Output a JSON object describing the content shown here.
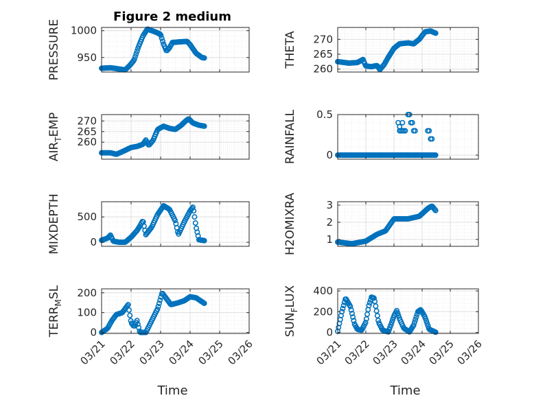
{
  "figure_title": "Figure 2 medium",
  "colors": {
    "marker": "#0072BD",
    "axis": "#262626",
    "grid_major": "#dfdfdf",
    "grid_minor": "#ececec",
    "background": "#ffffff"
  },
  "x_tick_labels": [
    "03/21",
    "03/22",
    "03/23",
    "03/24",
    "03/25",
    "03/26"
  ],
  "x_label": "Time",
  "chart_data": [
    {
      "type": "scatter",
      "id": "pressure",
      "ylabel": "PRESSURE",
      "xlabel": "",
      "x_unit": "days since 03/21",
      "xlim": [
        0,
        5
      ],
      "ylim": [
        923,
        1006
      ],
      "yticks": [
        950,
        1000
      ],
      "ytick_labels": [
        "950",
        "1000"
      ],
      "grid": true,
      "keyframes": [
        [
          0,
          930
        ],
        [
          0.3,
          931
        ],
        [
          0.55,
          929
        ],
        [
          0.8,
          927
        ],
        [
          0.95,
          935
        ],
        [
          1.1,
          945
        ],
        [
          1.25,
          970
        ],
        [
          1.4,
          990
        ],
        [
          1.55,
          1003
        ],
        [
          1.7,
          1000
        ],
        [
          1.85,
          997
        ],
        [
          2.0,
          993
        ],
        [
          2.1,
          975
        ],
        [
          2.2,
          962
        ],
        [
          2.3,
          968
        ],
        [
          2.4,
          978
        ],
        [
          2.6,
          979
        ],
        [
          2.9,
          980
        ],
        [
          3.0,
          974
        ],
        [
          3.2,
          958
        ],
        [
          3.4,
          950
        ],
        [
          3.5,
          949
        ]
      ]
    },
    {
      "type": "scatter",
      "id": "theta",
      "ylabel": "THETA",
      "xlabel": "",
      "x_unit": "days since 03/21",
      "xlim": [
        0,
        5
      ],
      "ylim": [
        259,
        274
      ],
      "yticks": [
        260,
        265,
        270
      ],
      "ytick_labels": [
        "260",
        "265",
        "270"
      ],
      "grid": true,
      "keyframes": [
        [
          0,
          262.5
        ],
        [
          0.4,
          262
        ],
        [
          0.7,
          262.2
        ],
        [
          0.9,
          263.2
        ],
        [
          1.0,
          261
        ],
        [
          1.2,
          260.8
        ],
        [
          1.4,
          261.2
        ],
        [
          1.5,
          259.8
        ],
        [
          1.65,
          261.5
        ],
        [
          1.8,
          264
        ],
        [
          2.0,
          267
        ],
        [
          2.2,
          268.5
        ],
        [
          2.5,
          268.8
        ],
        [
          2.7,
          268.5
        ],
        [
          2.9,
          270
        ],
        [
          3.1,
          272.5
        ],
        [
          3.3,
          272.8
        ],
        [
          3.5,
          272
        ]
      ]
    },
    {
      "type": "scatter",
      "id": "air_temp",
      "ylabel": "AIR",
      "ylabel_sub": "T",
      "ylabel_tail": "EMP",
      "xlabel": "",
      "x_unit": "days since 03/21",
      "xlim": [
        0,
        5
      ],
      "ylim": [
        252,
        273
      ],
      "yticks": [
        260,
        265,
        270
      ],
      "ytick_labels": [
        "260",
        "265",
        "270"
      ],
      "grid": true,
      "keyframes": [
        [
          0,
          255
        ],
        [
          0.3,
          255
        ],
        [
          0.5,
          254.3
        ],
        [
          0.7,
          255.5
        ],
        [
          1.0,
          257.5
        ],
        [
          1.2,
          258
        ],
        [
          1.4,
          259
        ],
        [
          1.5,
          261
        ],
        [
          1.6,
          258.5
        ],
        [
          1.75,
          261
        ],
        [
          1.9,
          266
        ],
        [
          2.1,
          267.5
        ],
        [
          2.3,
          266.5
        ],
        [
          2.5,
          266
        ],
        [
          2.7,
          268
        ],
        [
          2.85,
          270
        ],
        [
          2.95,
          271
        ],
        [
          3.1,
          269
        ],
        [
          3.3,
          268
        ],
        [
          3.5,
          267.5
        ]
      ]
    },
    {
      "type": "scatter",
      "id": "rainfall",
      "ylabel": "RAINFALL",
      "xlabel": "",
      "x_unit": "days since 03/21",
      "xlim": [
        0,
        5
      ],
      "ylim": [
        -0.05,
        0.5
      ],
      "yticks": [
        0,
        0.5
      ],
      "ytick_labels": [
        "0",
        "0.5"
      ],
      "grid": true,
      "keyframes": [
        [
          0,
          0
        ],
        [
          3.5,
          0
        ]
      ],
      "extra_points": [
        [
          2.15,
          0.4
        ],
        [
          2.2,
          0.3
        ],
        [
          2.25,
          0.3
        ],
        [
          2.3,
          0.3
        ],
        [
          2.35,
          0.3
        ],
        [
          2.4,
          0.3
        ],
        [
          2.45,
          0.0
        ],
        [
          2.5,
          0.5
        ],
        [
          2.55,
          0.5
        ],
        [
          2.6,
          0.4
        ],
        [
          2.65,
          0.4
        ],
        [
          2.7,
          0.3
        ],
        [
          2.75,
          0.3
        ],
        [
          2.8,
          0.0
        ],
        [
          3.2,
          0.3
        ],
        [
          3.25,
          0.3
        ],
        [
          3.3,
          0.2
        ],
        [
          3.35,
          0.2
        ],
        [
          2.2,
          0.35
        ],
        [
          2.3,
          0.4
        ]
      ]
    },
    {
      "type": "scatter",
      "id": "mixdepth",
      "ylabel": "MIXDEPTH",
      "xlabel": "",
      "x_unit": "days since 03/21",
      "xlim": [
        0,
        5
      ],
      "ylim": [
        -80,
        800
      ],
      "yticks": [
        0,
        500
      ],
      "ytick_labels": [
        "0",
        "500"
      ],
      "grid": true,
      "keyframes": [
        [
          0,
          40
        ],
        [
          0.2,
          80
        ],
        [
          0.3,
          140
        ],
        [
          0.4,
          20
        ],
        [
          0.6,
          0
        ],
        [
          0.8,
          0
        ],
        [
          1.0,
          100
        ],
        [
          1.2,
          230
        ],
        [
          1.3,
          320
        ],
        [
          1.4,
          430
        ],
        [
          1.5,
          150
        ],
        [
          1.7,
          300
        ],
        [
          1.9,
          550
        ],
        [
          2.1,
          720
        ],
        [
          2.3,
          650
        ],
        [
          2.5,
          420
        ],
        [
          2.6,
          150
        ],
        [
          2.8,
          400
        ],
        [
          3.0,
          620
        ],
        [
          3.1,
          700
        ],
        [
          3.2,
          300
        ],
        [
          3.3,
          50
        ],
        [
          3.5,
          30
        ]
      ]
    },
    {
      "type": "scatter",
      "id": "h2omixra",
      "ylabel": "H2OMIXRA",
      "xlabel": "",
      "x_unit": "days since 03/21",
      "xlim": [
        0,
        5
      ],
      "ylim": [
        0.6,
        3.2
      ],
      "yticks": [
        1,
        2,
        3
      ],
      "ytick_labels": [
        "1",
        "2",
        "3"
      ],
      "grid": true,
      "keyframes": [
        [
          0,
          0.85
        ],
        [
          0.5,
          0.75
        ],
        [
          1.0,
          0.9
        ],
        [
          1.4,
          1.3
        ],
        [
          1.7,
          1.5
        ],
        [
          2.0,
          2.2
        ],
        [
          2.5,
          2.2
        ],
        [
          2.9,
          2.35
        ],
        [
          3.2,
          2.8
        ],
        [
          3.35,
          2.95
        ],
        [
          3.5,
          2.65
        ]
      ]
    },
    {
      "type": "scatter",
      "id": "terr_msl",
      "ylabel": "TERR",
      "ylabel_sub": "M",
      "ylabel_tail": "SL",
      "xlabel": "Time",
      "x_unit": "days since 03/21",
      "xlim": [
        0,
        5
      ],
      "ylim": [
        -5,
        220
      ],
      "yticks": [
        0,
        100,
        200
      ],
      "ytick_labels": [
        "0",
        "100",
        "200"
      ],
      "grid": true,
      "keyframes": [
        [
          0,
          0
        ],
        [
          0.2,
          20
        ],
        [
          0.35,
          60
        ],
        [
          0.5,
          90
        ],
        [
          0.7,
          100
        ],
        [
          0.9,
          140
        ],
        [
          1.0,
          50
        ],
        [
          1.1,
          30
        ],
        [
          1.2,
          60
        ],
        [
          1.3,
          0
        ],
        [
          1.5,
          0
        ],
        [
          1.6,
          30
        ],
        [
          1.7,
          60
        ],
        [
          1.9,
          120
        ],
        [
          2.05,
          200
        ],
        [
          2.2,
          170
        ],
        [
          2.35,
          140
        ],
        [
          2.6,
          150
        ],
        [
          2.8,
          160
        ],
        [
          3.0,
          180
        ],
        [
          3.2,
          175
        ],
        [
          3.5,
          145
        ]
      ]
    },
    {
      "type": "scatter",
      "id": "sun_flux",
      "ylabel": "SUN",
      "ylabel_sub": "F",
      "ylabel_tail": "LUX",
      "xlabel": "Time",
      "x_unit": "days since 03/21",
      "xlim": [
        0,
        5
      ],
      "ylim": [
        -10,
        420
      ],
      "yticks": [
        0,
        200,
        400
      ],
      "ytick_labels": [
        "0",
        "200",
        "400"
      ],
      "grid": true,
      "keyframes": [
        [
          0,
          10
        ],
        [
          0.15,
          200
        ],
        [
          0.28,
          330
        ],
        [
          0.45,
          250
        ],
        [
          0.6,
          80
        ],
        [
          0.7,
          30
        ],
        [
          0.85,
          20
        ],
        [
          1.0,
          100
        ],
        [
          1.1,
          250
        ],
        [
          1.2,
          340
        ],
        [
          1.3,
          330
        ],
        [
          1.45,
          100
        ],
        [
          1.6,
          20
        ],
        [
          1.8,
          5
        ],
        [
          1.9,
          80
        ],
        [
          2.0,
          160
        ],
        [
          2.1,
          210
        ],
        [
          2.2,
          130
        ],
        [
          2.35,
          40
        ],
        [
          2.55,
          5
        ],
        [
          2.7,
          70
        ],
        [
          2.85,
          200
        ],
        [
          2.95,
          220
        ],
        [
          3.1,
          150
        ],
        [
          3.25,
          30
        ],
        [
          3.5,
          0
        ]
      ]
    }
  ]
}
